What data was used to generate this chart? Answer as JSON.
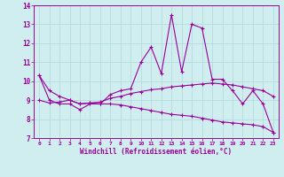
{
  "title": "",
  "xlabel": "Windchill (Refroidissement éolien,°C)",
  "xlim": [
    -0.5,
    23.5
  ],
  "ylim": [
    7,
    14
  ],
  "yticks": [
    7,
    8,
    9,
    10,
    11,
    12,
    13,
    14
  ],
  "xticks": [
    0,
    1,
    2,
    3,
    4,
    5,
    6,
    7,
    8,
    9,
    10,
    11,
    12,
    13,
    14,
    15,
    16,
    17,
    18,
    19,
    20,
    21,
    22,
    23
  ],
  "bg_color": "#d0eef0",
  "line_color": "#990099",
  "grid_color": "#b0d8dc",
  "series1_x": [
    0,
    1,
    2,
    3,
    4,
    5,
    6,
    7,
    8,
    9,
    10,
    11,
    12,
    13,
    14,
    15,
    16,
    17,
    18,
    19,
    20,
    21,
    22,
    23
  ],
  "series1_y": [
    10.3,
    9.0,
    8.8,
    8.8,
    8.5,
    8.8,
    8.8,
    9.3,
    9.5,
    9.6,
    11.0,
    11.8,
    10.4,
    13.5,
    10.5,
    13.0,
    12.8,
    10.1,
    10.1,
    9.5,
    8.8,
    9.5,
    8.8,
    7.3
  ],
  "series2_x": [
    0,
    1,
    2,
    3,
    4,
    5,
    6,
    7,
    8,
    9,
    10,
    11,
    12,
    13,
    14,
    15,
    16,
    17,
    18,
    19,
    20,
    21,
    22,
    23
  ],
  "series2_y": [
    9.0,
    8.85,
    8.9,
    9.0,
    8.8,
    8.85,
    8.9,
    9.1,
    9.2,
    9.35,
    9.45,
    9.55,
    9.6,
    9.7,
    9.75,
    9.8,
    9.85,
    9.9,
    9.85,
    9.8,
    9.7,
    9.6,
    9.5,
    9.2
  ],
  "series3_x": [
    0,
    1,
    2,
    3,
    4,
    5,
    6,
    7,
    8,
    9,
    10,
    11,
    12,
    13,
    14,
    15,
    16,
    17,
    18,
    19,
    20,
    21,
    22,
    23
  ],
  "series3_y": [
    10.3,
    9.5,
    9.2,
    9.0,
    8.8,
    8.85,
    8.8,
    8.8,
    8.75,
    8.65,
    8.55,
    8.45,
    8.35,
    8.25,
    8.2,
    8.15,
    8.05,
    7.95,
    7.85,
    7.8,
    7.75,
    7.7,
    7.6,
    7.3
  ]
}
